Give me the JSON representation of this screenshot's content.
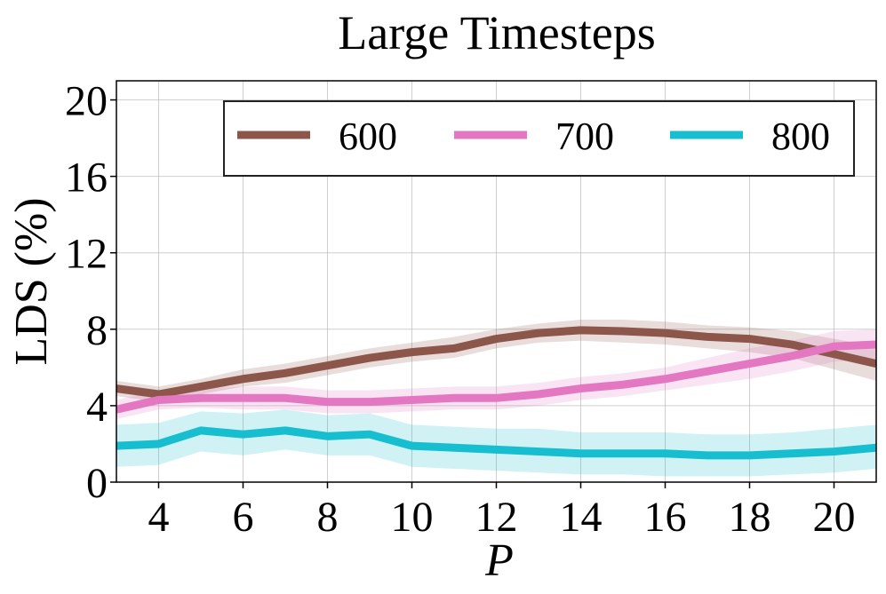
{
  "chart_data": {
    "type": "line",
    "title": "Large Timesteps",
    "xlabel": "P",
    "ylabel": "LDS (%)",
    "xlim": [
      3,
      21
    ],
    "ylim": [
      0,
      21
    ],
    "xticks": [
      4,
      6,
      8,
      10,
      12,
      14,
      16,
      18,
      20
    ],
    "yticks": [
      0,
      4,
      8,
      12,
      16,
      20
    ],
    "grid": true,
    "legend": {
      "placement": "top-right",
      "columns": 3
    },
    "x": [
      3,
      4,
      5,
      6,
      7,
      8,
      9,
      10,
      11,
      12,
      13,
      14,
      15,
      16,
      17,
      18,
      19,
      20,
      21
    ],
    "series": [
      {
        "name": "600",
        "color": "#8c564b",
        "values": [
          4.9,
          4.6,
          5.0,
          5.4,
          5.7,
          6.1,
          6.5,
          6.8,
          7.0,
          7.5,
          7.8,
          7.95,
          7.9,
          7.8,
          7.6,
          7.5,
          7.2,
          6.7,
          6.2
        ],
        "lower": [
          4.5,
          4.2,
          4.6,
          5.0,
          5.2,
          5.6,
          6.0,
          6.3,
          6.5,
          7.0,
          7.3,
          7.4,
          7.3,
          7.2,
          7.0,
          6.8,
          6.5,
          5.9,
          5.3
        ],
        "upper": [
          5.3,
          5.0,
          5.4,
          5.9,
          6.2,
          6.6,
          7.0,
          7.3,
          7.6,
          8.0,
          8.3,
          8.5,
          8.5,
          8.4,
          8.2,
          8.1,
          7.9,
          7.5,
          7.1
        ]
      },
      {
        "name": "700",
        "color": "#e377c2",
        "values": [
          3.8,
          4.3,
          4.4,
          4.4,
          4.4,
          4.2,
          4.2,
          4.3,
          4.4,
          4.4,
          4.6,
          4.9,
          5.1,
          5.4,
          5.8,
          6.2,
          6.6,
          7.1,
          7.2
        ],
        "lower": [
          3.3,
          3.8,
          3.9,
          3.8,
          3.8,
          3.6,
          3.6,
          3.7,
          3.8,
          3.8,
          4.0,
          4.3,
          4.5,
          4.8,
          5.1,
          5.4,
          5.8,
          6.3,
          6.4
        ],
        "upper": [
          4.3,
          4.8,
          4.9,
          5.0,
          5.0,
          4.8,
          4.8,
          4.9,
          5.0,
          5.0,
          5.2,
          5.5,
          5.7,
          6.0,
          6.5,
          7.0,
          7.4,
          7.9,
          8.0
        ]
      },
      {
        "name": "800",
        "color": "#17becf",
        "values": [
          1.9,
          2.0,
          2.7,
          2.5,
          2.7,
          2.4,
          2.5,
          1.9,
          1.8,
          1.7,
          1.6,
          1.5,
          1.5,
          1.5,
          1.4,
          1.4,
          1.5,
          1.6,
          1.8
        ],
        "lower": [
          0.8,
          0.9,
          1.6,
          1.4,
          1.7,
          1.4,
          1.4,
          0.8,
          0.7,
          0.6,
          0.5,
          0.4,
          0.4,
          0.3,
          0.3,
          0.3,
          0.4,
          0.5,
          0.7
        ],
        "upper": [
          3.0,
          3.1,
          3.7,
          3.6,
          3.8,
          3.5,
          3.6,
          3.0,
          2.9,
          2.8,
          2.8,
          2.6,
          2.6,
          2.6,
          2.5,
          2.5,
          2.6,
          2.8,
          3.0
        ]
      }
    ]
  }
}
